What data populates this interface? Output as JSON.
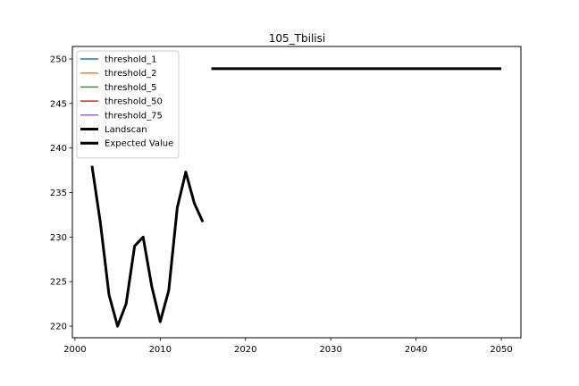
{
  "chart_data": {
    "type": "line",
    "title": "105_Tbilisi",
    "xlabel": "",
    "ylabel": "",
    "xlim": [
      1999.7,
      2052.3
    ],
    "ylim": [
      218.7,
      251.4
    ],
    "xticks": [
      2000,
      2010,
      2020,
      2030,
      2040,
      2050
    ],
    "yticks": [
      220,
      225,
      230,
      235,
      240,
      245,
      250
    ],
    "grid": false,
    "legend_position": "top-left",
    "series": [
      {
        "name": "threshold_1",
        "color": "#1f77b4",
        "linewidth": 1.5,
        "x": [],
        "y": []
      },
      {
        "name": "threshold_2",
        "color": "#ff7f0e",
        "linewidth": 1.5,
        "x": [],
        "y": []
      },
      {
        "name": "threshold_5",
        "color": "#2ca02c",
        "linewidth": 1.5,
        "x": [],
        "y": []
      },
      {
        "name": "threshold_50",
        "color": "#d62728",
        "linewidth": 1.5,
        "x": [],
        "y": []
      },
      {
        "name": "threshold_75",
        "color": "#9467bd",
        "linewidth": 1.5,
        "x": [],
        "y": []
      },
      {
        "name": "Landscan",
        "color": "#000000",
        "linewidth": 3,
        "x": [
          2002,
          2003,
          2004,
          2005,
          2006,
          2007,
          2008,
          2009,
          2010,
          2011,
          2012,
          2013,
          2014,
          2015
        ],
        "y": [
          238.0,
          231.5,
          223.5,
          220.0,
          222.5,
          229.0,
          230.0,
          224.5,
          220.5,
          224.0,
          233.3,
          237.3,
          233.8,
          231.7
        ]
      },
      {
        "name": "Expected Value",
        "color": "#000000",
        "linewidth": 3,
        "x": [
          2016,
          2050
        ],
        "y": [
          248.9,
          248.9
        ]
      }
    ]
  }
}
